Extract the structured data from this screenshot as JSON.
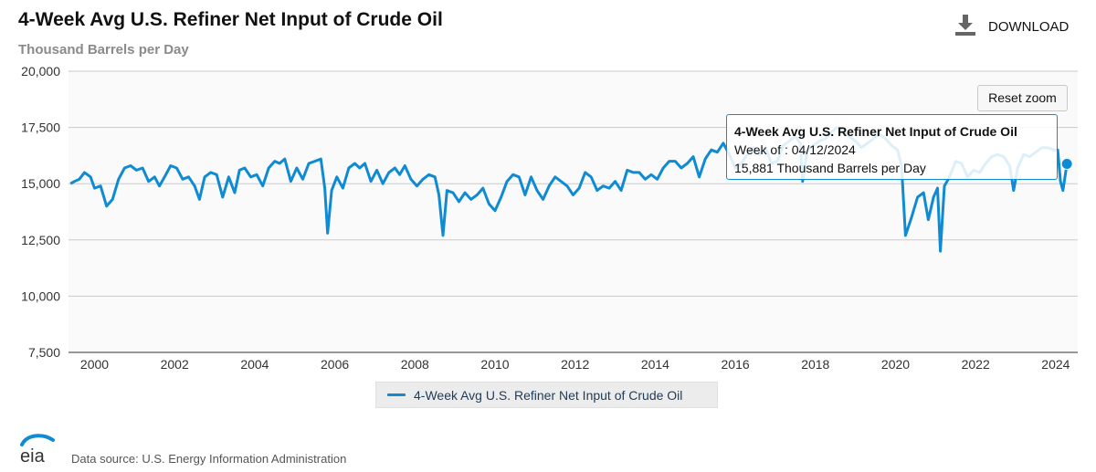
{
  "header": {
    "title": "4-Week Avg U.S. Refiner Net Input of Crude Oil",
    "subtitle": "Thousand Barrels per Day",
    "download_label": "DOWNLOAD",
    "download_icon": "download-icon"
  },
  "controls": {
    "reset_zoom_label": "Reset zoom"
  },
  "tooltip": {
    "title": "4-Week Avg U.S. Refiner Net Input of Crude Oil",
    "week_line": "Week of : 04/12/2024",
    "value_line": "15,881 Thousand Barrels per Day"
  },
  "legend": {
    "label": "4-Week Avg U.S. Refiner Net Input of Crude Oil"
  },
  "footer": {
    "source": "Data source: U.S. Energy Information Administration",
    "logo_text": "eia"
  },
  "colors": {
    "series": "#0e8bd3",
    "plot_bg": "#fafafa",
    "grid": "#c9c9c9"
  },
  "chart_data": {
    "type": "line",
    "title": "4-Week Avg U.S. Refiner Net Input of Crude Oil",
    "ylabel": "Thousand Barrels per Day",
    "xlim": [
      1999.35,
      2024.55
    ],
    "ylim": [
      7500,
      20000
    ],
    "yticks": [
      7500,
      10000,
      12500,
      15000,
      17500,
      20000
    ],
    "ytick_labels": [
      "7,500",
      "10,000",
      "12,500",
      "15,000",
      "17,500",
      "20,000"
    ],
    "xticks": [
      2000,
      2002,
      2004,
      2006,
      2008,
      2010,
      2012,
      2014,
      2016,
      2018,
      2020,
      2022,
      2024
    ],
    "xtick_labels": [
      "2000",
      "2002",
      "2004",
      "2006",
      "2008",
      "2010",
      "2012",
      "2014",
      "2016",
      "2018",
      "2020",
      "2022",
      "2024"
    ],
    "grid": true,
    "legend_position": "bottom-center",
    "highlight_point": {
      "date": "04/12/2024",
      "x": 2024.28,
      "y": 15881
    },
    "series": [
      {
        "name": "4-Week Avg U.S. Refiner Net Input of Crude Oil",
        "points": [
          [
            1999.4,
            15000
          ],
          [
            1999.5,
            15100
          ],
          [
            1999.62,
            15200
          ],
          [
            1999.75,
            15500
          ],
          [
            1999.9,
            15300
          ],
          [
            2000.0,
            14800
          ],
          [
            2000.15,
            14900
          ],
          [
            2000.3,
            14000
          ],
          [
            2000.45,
            14300
          ],
          [
            2000.6,
            15200
          ],
          [
            2000.75,
            15700
          ],
          [
            2000.9,
            15800
          ],
          [
            2001.05,
            15600
          ],
          [
            2001.2,
            15700
          ],
          [
            2001.35,
            15100
          ],
          [
            2001.5,
            15300
          ],
          [
            2001.62,
            14900
          ],
          [
            2001.75,
            15300
          ],
          [
            2001.9,
            15800
          ],
          [
            2002.05,
            15700
          ],
          [
            2002.2,
            15200
          ],
          [
            2002.35,
            15300
          ],
          [
            2002.5,
            14900
          ],
          [
            2002.62,
            14300
          ],
          [
            2002.75,
            15300
          ],
          [
            2002.9,
            15500
          ],
          [
            2003.05,
            15400
          ],
          [
            2003.2,
            14400
          ],
          [
            2003.35,
            15300
          ],
          [
            2003.5,
            14600
          ],
          [
            2003.62,
            15600
          ],
          [
            2003.75,
            15700
          ],
          [
            2003.9,
            15300
          ],
          [
            2004.05,
            15400
          ],
          [
            2004.2,
            14900
          ],
          [
            2004.35,
            15700
          ],
          [
            2004.5,
            16000
          ],
          [
            2004.62,
            15900
          ],
          [
            2004.75,
            16100
          ],
          [
            2004.9,
            15100
          ],
          [
            2005.05,
            15700
          ],
          [
            2005.2,
            15200
          ],
          [
            2005.35,
            15900
          ],
          [
            2005.5,
            16000
          ],
          [
            2005.65,
            16100
          ],
          [
            2005.75,
            14800
          ],
          [
            2005.82,
            12800
          ],
          [
            2005.92,
            14700
          ],
          [
            2006.05,
            15300
          ],
          [
            2006.2,
            14800
          ],
          [
            2006.35,
            15700
          ],
          [
            2006.5,
            15900
          ],
          [
            2006.62,
            15700
          ],
          [
            2006.75,
            15900
          ],
          [
            2006.9,
            15100
          ],
          [
            2007.05,
            15600
          ],
          [
            2007.2,
            15000
          ],
          [
            2007.35,
            15500
          ],
          [
            2007.5,
            15700
          ],
          [
            2007.62,
            15400
          ],
          [
            2007.75,
            15800
          ],
          [
            2007.9,
            15200
          ],
          [
            2008.05,
            14900
          ],
          [
            2008.2,
            15200
          ],
          [
            2008.35,
            15400
          ],
          [
            2008.5,
            15300
          ],
          [
            2008.6,
            14500
          ],
          [
            2008.7,
            12700
          ],
          [
            2008.8,
            14700
          ],
          [
            2008.95,
            14600
          ],
          [
            2009.1,
            14200
          ],
          [
            2009.25,
            14600
          ],
          [
            2009.4,
            14300
          ],
          [
            2009.55,
            14500
          ],
          [
            2009.7,
            14800
          ],
          [
            2009.85,
            14100
          ],
          [
            2010.0,
            13800
          ],
          [
            2010.15,
            14400
          ],
          [
            2010.3,
            15100
          ],
          [
            2010.45,
            15400
          ],
          [
            2010.6,
            15300
          ],
          [
            2010.75,
            14500
          ],
          [
            2010.9,
            15300
          ],
          [
            2011.05,
            14700
          ],
          [
            2011.2,
            14300
          ],
          [
            2011.35,
            14900
          ],
          [
            2011.5,
            15300
          ],
          [
            2011.65,
            15100
          ],
          [
            2011.8,
            14900
          ],
          [
            2011.95,
            14500
          ],
          [
            2012.1,
            14800
          ],
          [
            2012.25,
            15500
          ],
          [
            2012.4,
            15300
          ],
          [
            2012.55,
            14700
          ],
          [
            2012.7,
            14900
          ],
          [
            2012.85,
            14800
          ],
          [
            2013.0,
            15100
          ],
          [
            2013.15,
            14700
          ],
          [
            2013.3,
            15600
          ],
          [
            2013.45,
            15500
          ],
          [
            2013.6,
            15500
          ],
          [
            2013.75,
            15200
          ],
          [
            2013.9,
            15400
          ],
          [
            2014.05,
            15200
          ],
          [
            2014.2,
            15700
          ],
          [
            2014.35,
            16000
          ],
          [
            2014.5,
            16000
          ],
          [
            2014.65,
            15700
          ],
          [
            2014.8,
            15900
          ],
          [
            2014.95,
            16200
          ],
          [
            2015.1,
            15300
          ],
          [
            2015.25,
            16100
          ],
          [
            2015.4,
            16500
          ],
          [
            2015.55,
            16400
          ],
          [
            2015.7,
            16800
          ],
          [
            2015.85,
            16300
          ],
          [
            2016.0,
            15700
          ],
          [
            2016.15,
            15900
          ],
          [
            2016.3,
            16300
          ],
          [
            2016.45,
            16600
          ],
          [
            2016.6,
            16300
          ],
          [
            2016.75,
            16600
          ],
          [
            2016.9,
            15900
          ],
          [
            2017.05,
            16000
          ],
          [
            2017.2,
            16700
          ],
          [
            2017.35,
            16900
          ],
          [
            2017.5,
            17100
          ],
          [
            2017.62,
            16800
          ],
          [
            2017.68,
            15100
          ],
          [
            2017.8,
            16500
          ],
          [
            2017.95,
            16700
          ],
          [
            2018.1,
            16900
          ],
          [
            2018.25,
            17000
          ],
          [
            2018.4,
            17300
          ],
          [
            2018.55,
            17500
          ],
          [
            2018.7,
            17300
          ],
          [
            2018.85,
            17100
          ],
          [
            2019.0,
            16900
          ],
          [
            2019.15,
            16600
          ],
          [
            2019.3,
            16800
          ],
          [
            2019.45,
            17000
          ],
          [
            2019.6,
            17200
          ],
          [
            2019.75,
            17000
          ],
          [
            2019.9,
            16700
          ],
          [
            2020.05,
            16500
          ],
          [
            2020.15,
            15800
          ],
          [
            2020.25,
            12700
          ],
          [
            2020.4,
            13500
          ],
          [
            2020.55,
            14400
          ],
          [
            2020.7,
            14600
          ],
          [
            2020.82,
            13400
          ],
          [
            2020.95,
            14400
          ],
          [
            2021.05,
            14800
          ],
          [
            2021.12,
            12000
          ],
          [
            2021.22,
            14900
          ],
          [
            2021.35,
            15300
          ],
          [
            2021.5,
            16000
          ],
          [
            2021.65,
            15900
          ],
          [
            2021.8,
            15300
          ],
          [
            2021.95,
            15600
          ],
          [
            2022.1,
            15500
          ],
          [
            2022.25,
            15900
          ],
          [
            2022.4,
            16200
          ],
          [
            2022.55,
            16300
          ],
          [
            2022.7,
            16200
          ],
          [
            2022.85,
            15800
          ],
          [
            2022.95,
            14700
          ],
          [
            2023.05,
            15700
          ],
          [
            2023.2,
            16300
          ],
          [
            2023.35,
            16200
          ],
          [
            2023.5,
            16400
          ],
          [
            2023.65,
            16600
          ],
          [
            2023.8,
            16600
          ],
          [
            2023.95,
            16500
          ],
          [
            2024.05,
            16500
          ],
          [
            2024.12,
            15100
          ],
          [
            2024.18,
            14700
          ],
          [
            2024.24,
            15400
          ],
          [
            2024.28,
            15881
          ]
        ]
      }
    ]
  }
}
